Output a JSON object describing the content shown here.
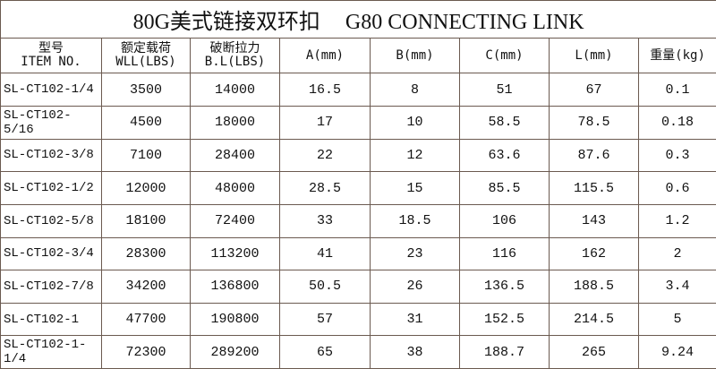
{
  "title": {
    "cn": "80G美式链接双环扣",
    "en": "G80  CONNECTING LINK"
  },
  "headers": [
    {
      "line1": "型号",
      "line2": "ITEM NO."
    },
    {
      "line1": "额定载荷",
      "line2": "WLL(LBS)"
    },
    {
      "line1": "破断拉力",
      "line2": "B.L(LBS)"
    },
    {
      "line1": "A(mm)",
      "line2": ""
    },
    {
      "line1": "B(mm)",
      "line2": ""
    },
    {
      "line1": "C(mm)",
      "line2": ""
    },
    {
      "line1": "L(mm)",
      "line2": ""
    },
    {
      "line1": "重量(kg)",
      "line2": ""
    }
  ],
  "rows": [
    [
      "SL-CT102-1/4",
      "3500",
      "14000",
      "16.5",
      "8",
      "51",
      "67",
      "0.1"
    ],
    [
      "SL-CT102-5/16",
      "4500",
      "18000",
      "17",
      "10",
      "58.5",
      "78.5",
      "0.18"
    ],
    [
      "SL-CT102-3/8",
      "7100",
      "28400",
      "22",
      "12",
      "63.6",
      "87.6",
      "0.3"
    ],
    [
      "SL-CT102-1/2",
      "12000",
      "48000",
      "28.5",
      "15",
      "85.5",
      "115.5",
      "0.6"
    ],
    [
      "SL-CT102-5/8",
      "18100",
      "72400",
      "33",
      "18.5",
      "106",
      "143",
      "1.2"
    ],
    [
      "SL-CT102-3/4",
      "28300",
      "113200",
      "41",
      "23",
      "116",
      "162",
      "2"
    ],
    [
      "SL-CT102-7/8",
      "34200",
      "136800",
      "50.5",
      "26",
      "136.5",
      "188.5",
      "3.4"
    ],
    [
      "SL-CT102-1",
      "47700",
      "190800",
      "57",
      "31",
      "152.5",
      "214.5",
      "5"
    ],
    [
      "SL-CT102-1-1/4",
      "72300",
      "289200",
      "65",
      "38",
      "188.7",
      "265",
      "9.24"
    ]
  ],
  "colors": {
    "border": "#6b5a50"
  }
}
